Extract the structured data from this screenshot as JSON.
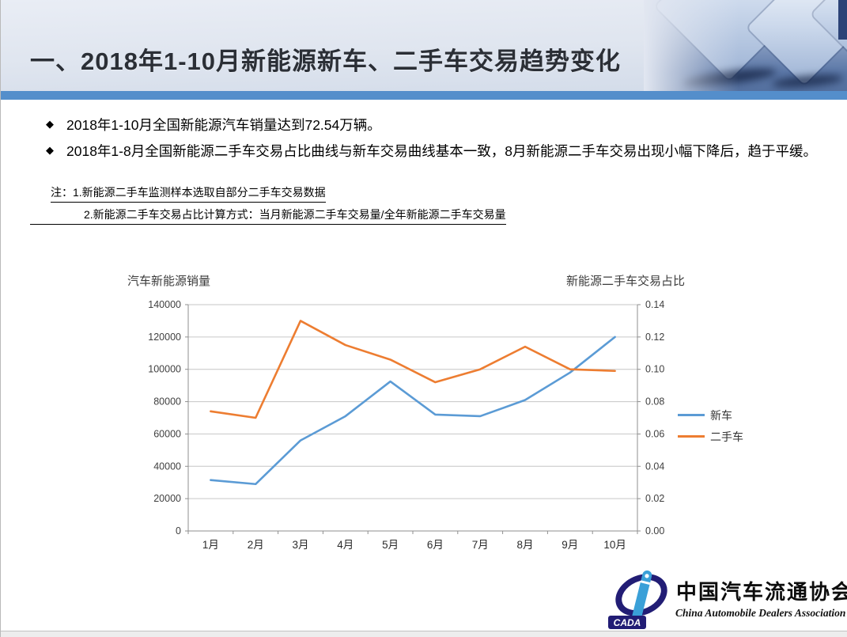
{
  "header": {
    "title": "一、2018年1-10月新能源新车、二手车交易趋势变化"
  },
  "bullets": [
    {
      "marker": "◆",
      "text": "2018年1-10月全国新能源汽车销量达到72.54万辆。"
    },
    {
      "marker": "◆",
      "text": "2018年1-8月全国新能源二手车交易占比曲线与新车交易曲线基本一致，8月新能源二手车交易出现小幅下降后，趋于平缓。"
    }
  ],
  "notes": [
    "注：1.新能源二手车监测样本选取自部分二手车交易数据",
    "2.新能源二手车交易占比计算方式：当月新能源二手车交易量/全年新能源二手车交易量"
  ],
  "chart_data": {
    "type": "line",
    "left_axis_title": "汽车新能源销量",
    "right_axis_title": "新能源二手车交易占比",
    "categories": [
      "1月",
      "2月",
      "3月",
      "4月",
      "5月",
      "6月",
      "7月",
      "8月",
      "9月",
      "10月"
    ],
    "series": [
      {
        "name": "新车",
        "axis": "left",
        "color": "#5B9BD5",
        "values": [
          31500,
          29000,
          56000,
          71000,
          92500,
          72000,
          71000,
          81000,
          98000,
          120000
        ]
      },
      {
        "name": "二手车",
        "axis": "right",
        "color": "#ED7D31",
        "values": [
          0.074,
          0.07,
          0.13,
          0.115,
          0.106,
          0.092,
          0.1,
          0.114,
          0.1,
          0.099
        ]
      }
    ],
    "left_axis": {
      "min": 0,
      "max": 140000,
      "labels": [
        "0",
        "20000",
        "40000",
        "60000",
        "80000",
        "100000",
        "120000",
        "140000"
      ]
    },
    "right_axis": {
      "min": 0,
      "max": 0.14,
      "labels": [
        "0.00",
        "0.02",
        "0.04",
        "0.06",
        "0.08",
        "0.10",
        "0.12",
        "0.14"
      ]
    },
    "grid": true,
    "legend_position": "right"
  },
  "logo": {
    "badge": "CADA",
    "cn": "中国汽车流通协会",
    "en": "China Automobile Dealers Association"
  },
  "colors": {
    "header_bar": "#548ECB",
    "grid": "#c6c6c6",
    "axis": "#8f8f8f",
    "tick_text": "#3f3f3f"
  }
}
